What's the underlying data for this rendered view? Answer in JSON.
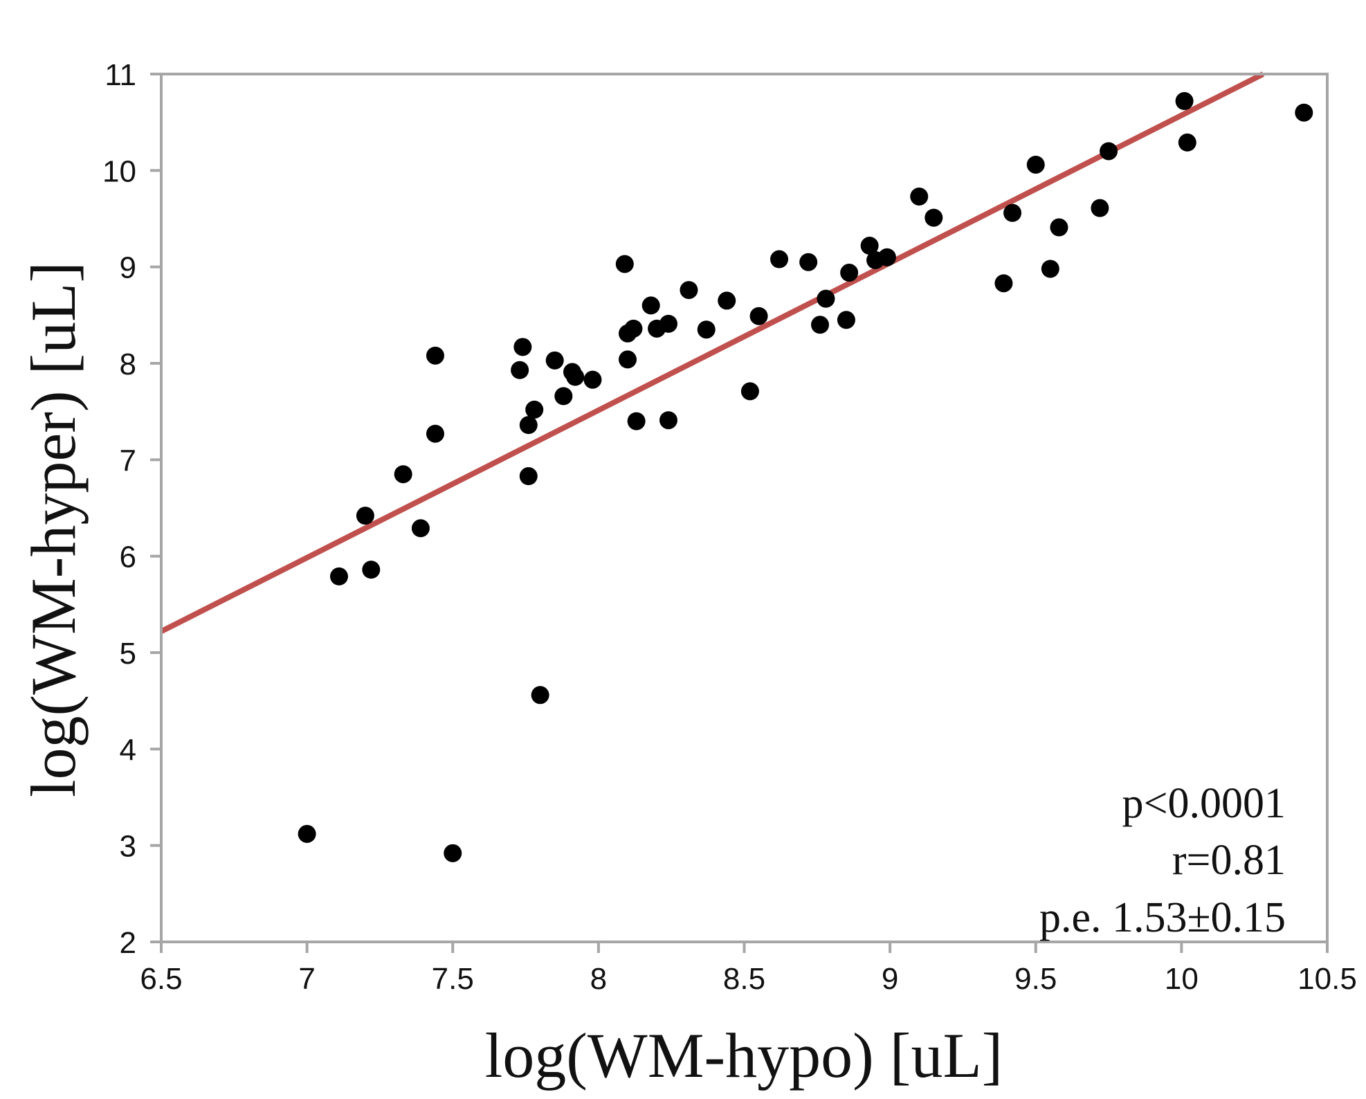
{
  "chart_data": {
    "type": "scatter",
    "xlabel": "log(WM-hypo) [uL]",
    "ylabel": "log(WM-hyper) [uL]",
    "xlim": [
      6.5,
      10.5
    ],
    "ylim": [
      2,
      11
    ],
    "x_ticks": [
      "6.5",
      "7",
      "7.5",
      "8",
      "8.5",
      "9",
      "9.5",
      "10",
      "10.5"
    ],
    "y_ticks": [
      "2",
      "3",
      "4",
      "5",
      "6",
      "7",
      "8",
      "9",
      "10",
      "11"
    ],
    "grid": false,
    "point_color": "#000000",
    "fit_line": {
      "color": "#c0504d",
      "x": [
        6.5,
        10.28
      ],
      "y": [
        5.22,
        11.0
      ]
    },
    "annotations": [
      "p<0.0001",
      "r=0.81",
      "p.e. 1.53±0.15"
    ],
    "points": [
      {
        "x": 7.0,
        "y": 3.12
      },
      {
        "x": 7.5,
        "y": 2.92
      },
      {
        "x": 7.8,
        "y": 4.56
      },
      {
        "x": 7.11,
        "y": 5.79
      },
      {
        "x": 7.22,
        "y": 5.86
      },
      {
        "x": 7.2,
        "y": 6.42
      },
      {
        "x": 7.33,
        "y": 6.85
      },
      {
        "x": 7.39,
        "y": 6.29
      },
      {
        "x": 7.44,
        "y": 7.27
      },
      {
        "x": 7.44,
        "y": 8.08
      },
      {
        "x": 7.73,
        "y": 7.93
      },
      {
        "x": 7.74,
        "y": 8.17
      },
      {
        "x": 7.76,
        "y": 7.36
      },
      {
        "x": 7.76,
        "y": 6.83
      },
      {
        "x": 7.78,
        "y": 7.52
      },
      {
        "x": 7.85,
        "y": 8.03
      },
      {
        "x": 7.88,
        "y": 7.66
      },
      {
        "x": 7.91,
        "y": 7.91
      },
      {
        "x": 7.92,
        "y": 7.86
      },
      {
        "x": 7.98,
        "y": 7.83
      },
      {
        "x": 8.09,
        "y": 9.03
      },
      {
        "x": 8.1,
        "y": 8.31
      },
      {
        "x": 8.12,
        "y": 8.36
      },
      {
        "x": 8.1,
        "y": 8.04
      },
      {
        "x": 8.13,
        "y": 7.4
      },
      {
        "x": 8.18,
        "y": 8.6
      },
      {
        "x": 8.2,
        "y": 8.36
      },
      {
        "x": 8.24,
        "y": 8.41
      },
      {
        "x": 8.24,
        "y": 7.41
      },
      {
        "x": 8.31,
        "y": 8.76
      },
      {
        "x": 8.37,
        "y": 8.35
      },
      {
        "x": 8.44,
        "y": 8.65
      },
      {
        "x": 8.52,
        "y": 7.71
      },
      {
        "x": 8.55,
        "y": 8.49
      },
      {
        "x": 8.62,
        "y": 9.08
      },
      {
        "x": 8.72,
        "y": 9.05
      },
      {
        "x": 8.76,
        "y": 8.4
      },
      {
        "x": 8.78,
        "y": 8.67
      },
      {
        "x": 8.85,
        "y": 8.45
      },
      {
        "x": 8.86,
        "y": 8.94
      },
      {
        "x": 8.93,
        "y": 9.22
      },
      {
        "x": 8.95,
        "y": 9.07
      },
      {
        "x": 8.99,
        "y": 9.1
      },
      {
        "x": 9.1,
        "y": 9.73
      },
      {
        "x": 9.15,
        "y": 9.51
      },
      {
        "x": 9.39,
        "y": 8.83
      },
      {
        "x": 9.42,
        "y": 9.56
      },
      {
        "x": 9.5,
        "y": 10.06
      },
      {
        "x": 9.55,
        "y": 8.98
      },
      {
        "x": 9.58,
        "y": 9.41
      },
      {
        "x": 9.72,
        "y": 9.61
      },
      {
        "x": 9.75,
        "y": 10.2
      },
      {
        "x": 10.01,
        "y": 10.72
      },
      {
        "x": 10.02,
        "y": 10.29
      },
      {
        "x": 10.42,
        "y": 10.6
      }
    ]
  }
}
